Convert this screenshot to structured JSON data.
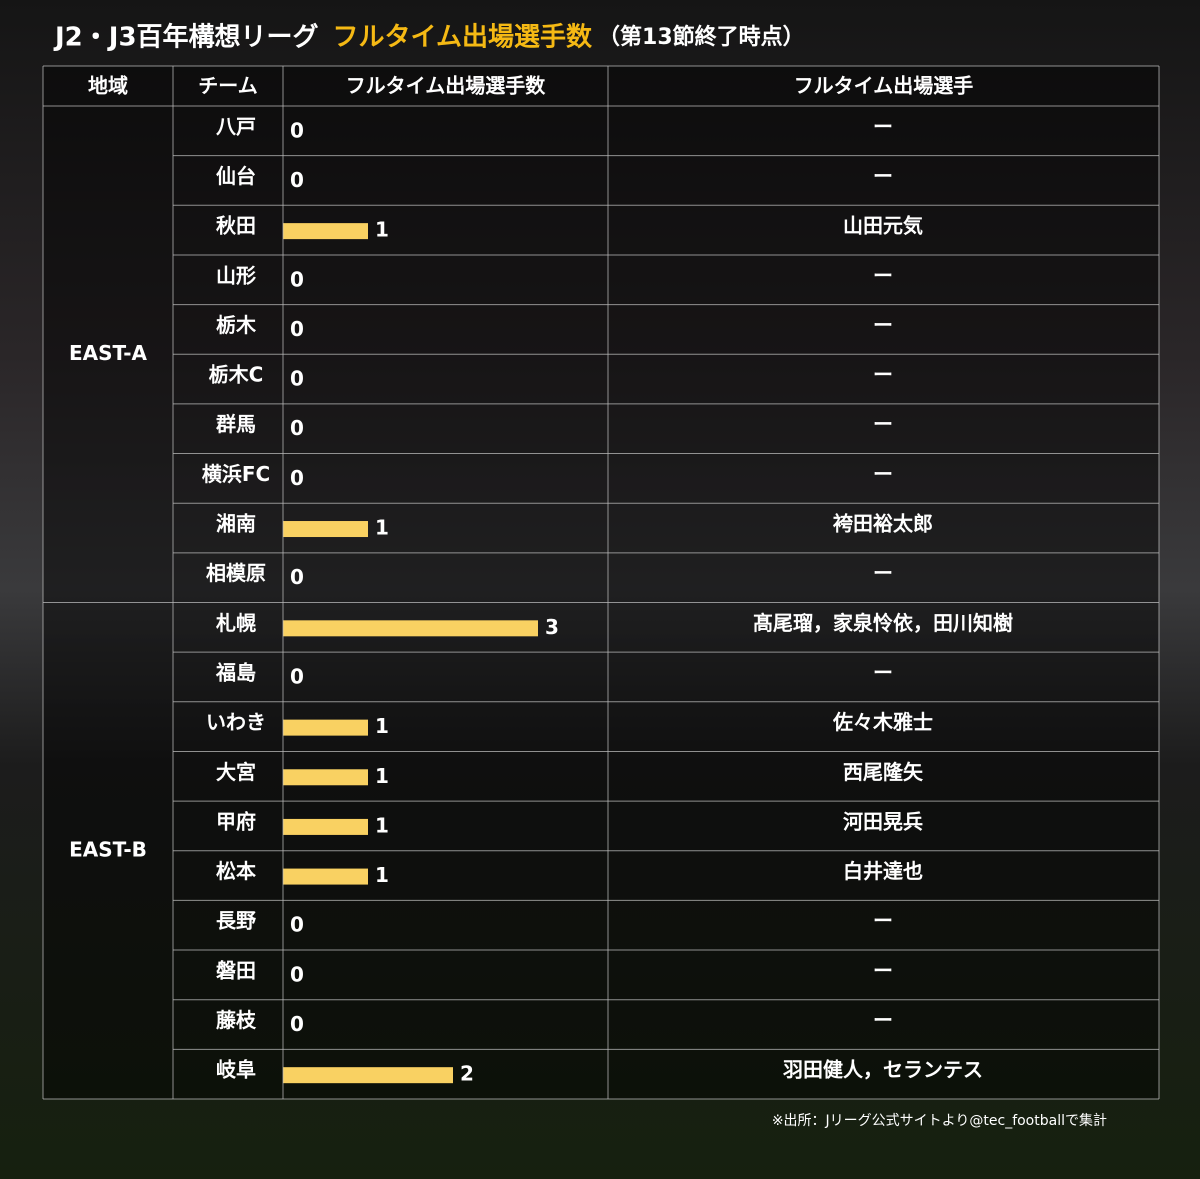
{
  "title": {
    "prefix": "J2・J3百年構想リーグ",
    "highlight": "フルタイム出場選手数",
    "suffix": "（第13節終了時点）"
  },
  "table": {
    "headers": [
      "地域",
      "チーム",
      "フルタイム出場選手数",
      "フルタイム出場選手"
    ],
    "groups": [
      {
        "region": "EAST-A",
        "rows": [
          {
            "team": "八戸",
            "count": 0,
            "players": "ー"
          },
          {
            "team": "仙台",
            "count": 0,
            "players": "ー"
          },
          {
            "team": "秋田",
            "count": 1,
            "players": "山田元気"
          },
          {
            "team": "山形",
            "count": 0,
            "players": "ー"
          },
          {
            "team": "栃木",
            "count": 0,
            "players": "ー"
          },
          {
            "team": "栃木C",
            "count": 0,
            "players": "ー"
          },
          {
            "team": "群馬",
            "count": 0,
            "players": "ー"
          },
          {
            "team": "横浜FC",
            "count": 0,
            "players": "ー"
          },
          {
            "team": "湘南",
            "count": 1,
            "players": "袴田裕太郎"
          },
          {
            "team": "相模原",
            "count": 0,
            "players": "ー"
          }
        ]
      },
      {
        "region": "EAST-B",
        "rows": [
          {
            "team": "札幌",
            "count": 3,
            "players": "髙尾瑠，家泉怜依，田川知樹"
          },
          {
            "team": "福島",
            "count": 0,
            "players": "ー"
          },
          {
            "team": "いわき",
            "count": 1,
            "players": "佐々木雅士"
          },
          {
            "team": "大宮",
            "count": 1,
            "players": "西尾隆矢"
          },
          {
            "team": "甲府",
            "count": 1,
            "players": "河田晃兵"
          },
          {
            "team": "松本",
            "count": 1,
            "players": "白井達也"
          },
          {
            "team": "長野",
            "count": 0,
            "players": "ー"
          },
          {
            "team": "磐田",
            "count": 0,
            "players": "ー"
          },
          {
            "team": "藤枝",
            "count": 0,
            "players": "ー"
          },
          {
            "team": "岐阜",
            "count": 2,
            "players": "羽田健人，セランテス"
          }
        ]
      }
    ]
  },
  "footnote": "※出所：Jリーグ公式サイトより@tec_footballで集計"
}
